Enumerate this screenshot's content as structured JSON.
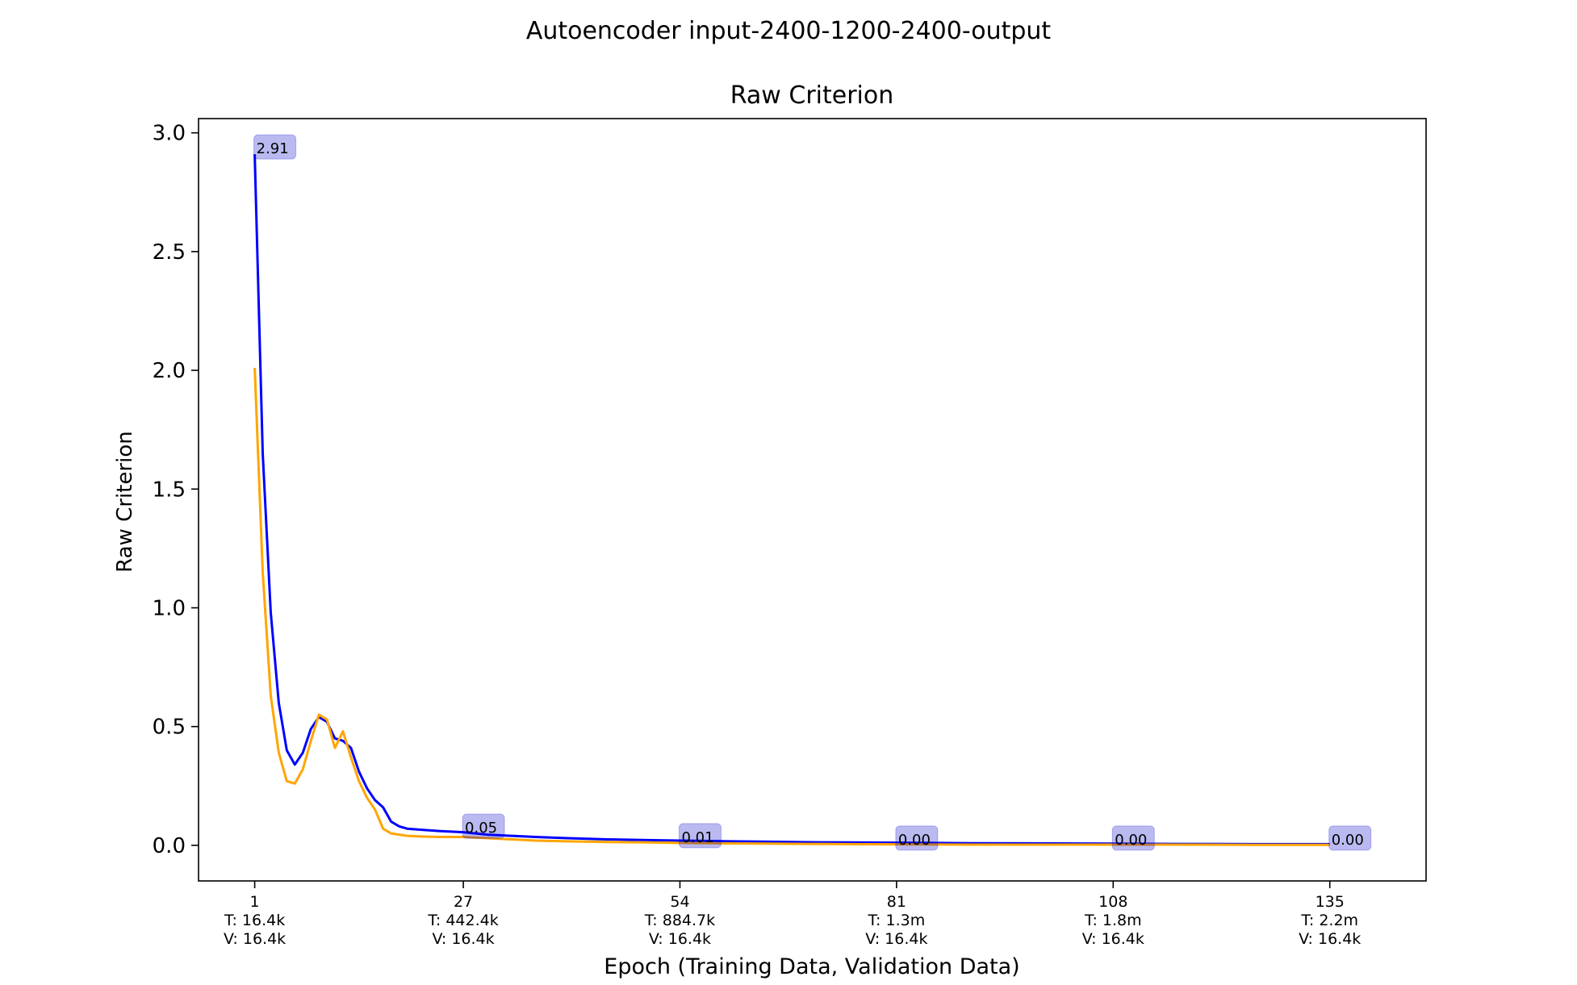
{
  "figure": {
    "suptitle": "Autoencoder input-2400-1200-2400-output"
  },
  "chart_data": {
    "type": "line",
    "title": "Raw Criterion",
    "xlabel": "Epoch (Training Data, Validation Data)",
    "ylabel": "Raw Criterion",
    "xlim": [
      -6,
      147
    ],
    "ylim": [
      -0.15,
      3.06
    ],
    "grid": false,
    "x_ticks": [
      {
        "value": 1,
        "lines": [
          "1",
          "T: 16.4k",
          "V: 16.4k"
        ]
      },
      {
        "value": 27,
        "lines": [
          "27",
          "T: 442.4k",
          "V: 16.4k"
        ]
      },
      {
        "value": 54,
        "lines": [
          "54",
          "T: 884.7k",
          "V: 16.4k"
        ]
      },
      {
        "value": 81,
        "lines": [
          "81",
          "T: 1.3m",
          "V: 16.4k"
        ]
      },
      {
        "value": 108,
        "lines": [
          "108",
          "T: 1.8m",
          "V: 16.4k"
        ]
      },
      {
        "value": 135,
        "lines": [
          "135",
          "T: 2.2m",
          "V: 16.4k"
        ]
      }
    ],
    "y_ticks": [
      0.0,
      0.5,
      1.0,
      1.5,
      2.0,
      2.5,
      3.0
    ],
    "y_tick_labels": [
      "0.0",
      "0.5",
      "1.0",
      "1.5",
      "2.0",
      "2.5",
      "3.0"
    ],
    "series": [
      {
        "color": "#0000ff",
        "points": [
          [
            1,
            2.91
          ],
          [
            2,
            1.65
          ],
          [
            3,
            0.98
          ],
          [
            4,
            0.6
          ],
          [
            5,
            0.4
          ],
          [
            6,
            0.34
          ],
          [
            7,
            0.39
          ],
          [
            8,
            0.49
          ],
          [
            9,
            0.54
          ],
          [
            10,
            0.52
          ],
          [
            11,
            0.45
          ],
          [
            12,
            0.44
          ],
          [
            13,
            0.41
          ],
          [
            14,
            0.31
          ],
          [
            15,
            0.24
          ],
          [
            16,
            0.19
          ],
          [
            17,
            0.16
          ],
          [
            18,
            0.1
          ],
          [
            19,
            0.08
          ],
          [
            20,
            0.07
          ],
          [
            22,
            0.065
          ],
          [
            24,
            0.06
          ],
          [
            27,
            0.055
          ],
          [
            30,
            0.045
          ],
          [
            33,
            0.04
          ],
          [
            36,
            0.035
          ],
          [
            40,
            0.03
          ],
          [
            45,
            0.025
          ],
          [
            50,
            0.022
          ],
          [
            54,
            0.02
          ],
          [
            60,
            0.017
          ],
          [
            65,
            0.015
          ],
          [
            70,
            0.013
          ],
          [
            75,
            0.012
          ],
          [
            81,
            0.011
          ],
          [
            90,
            0.009
          ],
          [
            100,
            0.008
          ],
          [
            108,
            0.007
          ],
          [
            115,
            0.006
          ],
          [
            125,
            0.005
          ],
          [
            135,
            0.005
          ]
        ]
      },
      {
        "color": "#ffa500",
        "points": [
          [
            1,
            2.01
          ],
          [
            2,
            1.15
          ],
          [
            3,
            0.63
          ],
          [
            4,
            0.39
          ],
          [
            5,
            0.27
          ],
          [
            6,
            0.26
          ],
          [
            7,
            0.32
          ],
          [
            8,
            0.44
          ],
          [
            9,
            0.55
          ],
          [
            10,
            0.53
          ],
          [
            11,
            0.41
          ],
          [
            12,
            0.48
          ],
          [
            13,
            0.37
          ],
          [
            14,
            0.27
          ],
          [
            15,
            0.2
          ],
          [
            16,
            0.15
          ],
          [
            17,
            0.07
          ],
          [
            18,
            0.05
          ],
          [
            19,
            0.045
          ],
          [
            20,
            0.04
          ],
          [
            22,
            0.037
          ],
          [
            24,
            0.035
          ],
          [
            27,
            0.035
          ],
          [
            30,
            0.03
          ],
          [
            33,
            0.025
          ],
          [
            36,
            0.02
          ],
          [
            40,
            0.017
          ],
          [
            45,
            0.014
          ],
          [
            50,
            0.012
          ],
          [
            54,
            0.01
          ],
          [
            60,
            0.008
          ],
          [
            65,
            0.007
          ],
          [
            70,
            0.006
          ],
          [
            75,
            0.005
          ],
          [
            81,
            0.004
          ],
          [
            90,
            0.003
          ],
          [
            100,
            0.003
          ],
          [
            108,
            0.003
          ],
          [
            115,
            0.003
          ],
          [
            125,
            0.002
          ],
          [
            135,
            0.002
          ]
        ]
      }
    ],
    "annotations": [
      {
        "x": 1,
        "y": 2.91,
        "text": "2.91"
      },
      {
        "x": 27,
        "y": 0.05,
        "text": "0.05"
      },
      {
        "x": 54,
        "y": 0.01,
        "text": "0.01"
      },
      {
        "x": 81,
        "y": 0.0,
        "text": "0.00"
      },
      {
        "x": 108,
        "y": 0.0,
        "text": "0.00"
      },
      {
        "x": 135,
        "y": 0.0,
        "text": "0.00"
      }
    ]
  }
}
